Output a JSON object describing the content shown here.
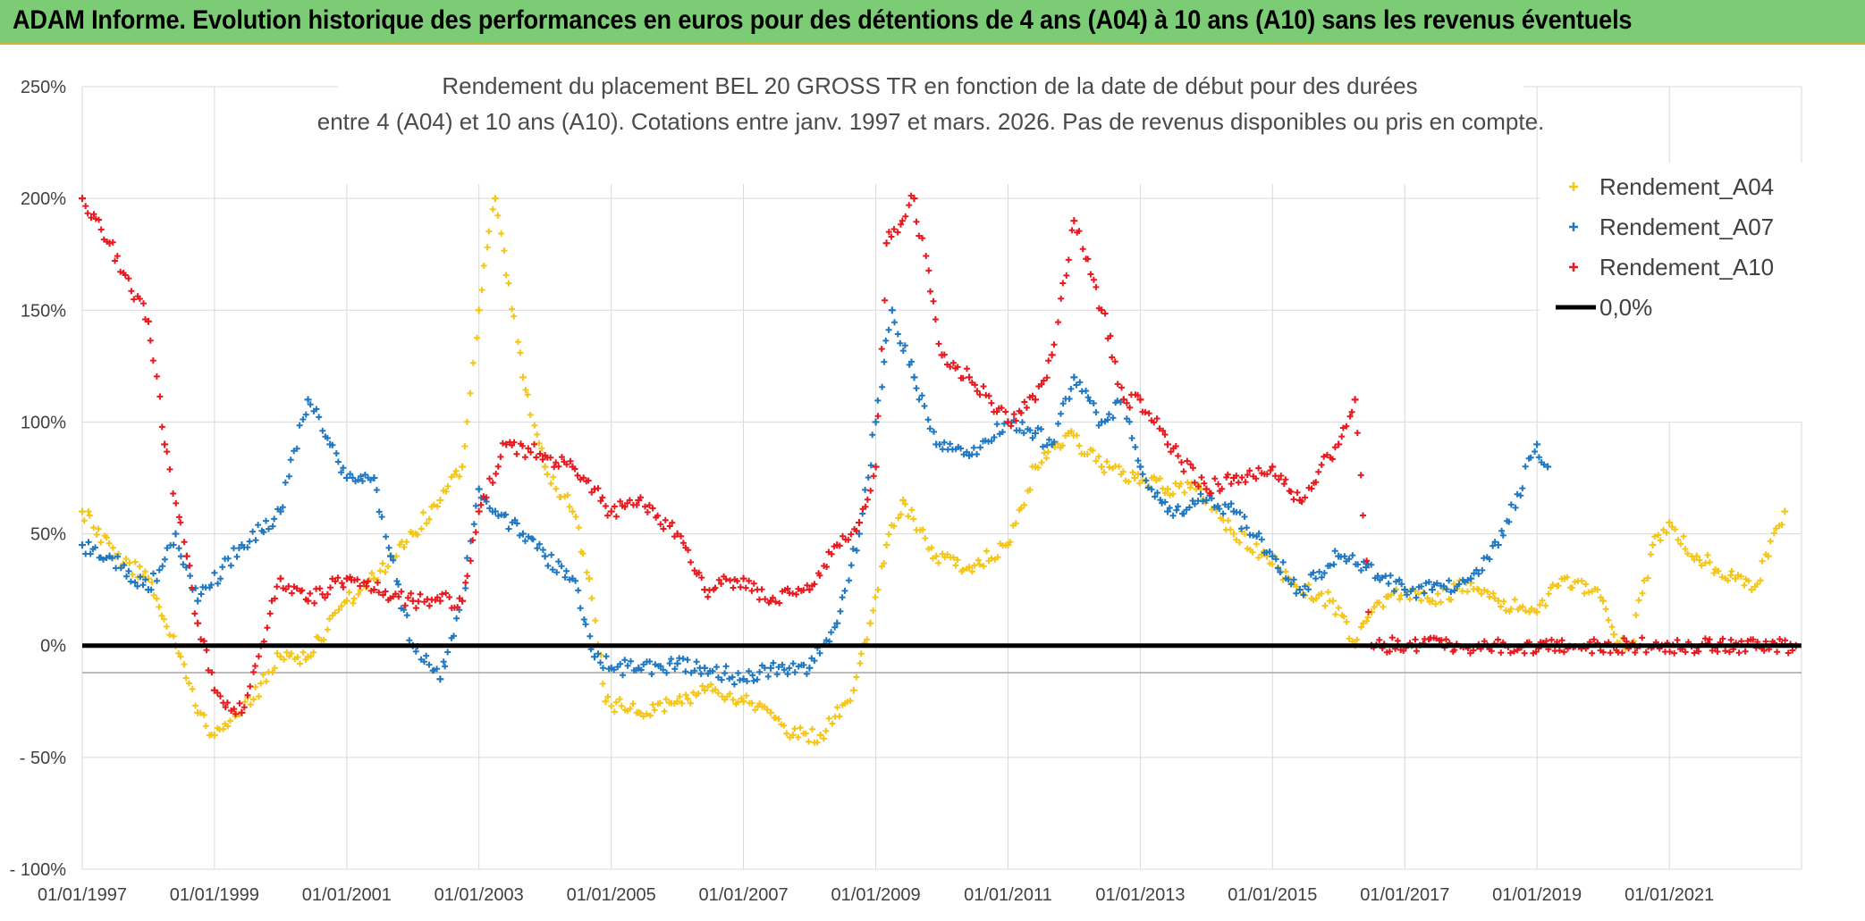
{
  "banner": "ADAM Informe. Evolution historique des performances en euros pour des détentions de 4 ans (A04) à 10 ans (A10) sans les revenus éventuels",
  "chart_data": {
    "type": "scatter",
    "title_line1": "Rendement du placement BEL 20 GROSS TR en fonction de la date de début pour des durées",
    "title_line2": "entre 4 (A04) et 10 ans (A10). Cotations entre janv. 1997 et mars. 2026. Pas de revenus disponibles ou pris en compte.",
    "xlabel": "",
    "ylabel": "",
    "x_range": [
      "1997-01-01",
      "2023-01-01"
    ],
    "ylim": [
      -100,
      250
    ],
    "y_ticks": [
      -100,
      -50,
      0,
      50,
      100,
      150,
      200,
      250
    ],
    "y_tick_labels": [
      "- 100%",
      "- 50%",
      "0%",
      "50%",
      "100%",
      "150%",
      "200%",
      "250%"
    ],
    "x_ticks": [
      "1997-01-01",
      "1999-01-01",
      "2001-01-01",
      "2003-01-01",
      "2005-01-01",
      "2007-01-01",
      "2009-01-01",
      "2011-01-01",
      "2013-01-01",
      "2015-01-01",
      "2017-01-01",
      "2019-01-01",
      "2021-01-01"
    ],
    "x_tick_labels": [
      "01/01/1997",
      "01/01/1999",
      "01/01/2001",
      "01/01/2003",
      "01/01/2005",
      "01/01/2007",
      "01/01/2009",
      "01/01/2011",
      "01/01/2013",
      "01/01/2015",
      "01/01/2017",
      "01/01/2019",
      "01/01/2021"
    ],
    "grid": true,
    "legend_position": "top-right",
    "marker": "+",
    "series": [
      {
        "name": "Rendement_A04",
        "color": "#f5c518",
        "x": [
          "1997-01",
          "1997-07",
          "1998-01",
          "1998-06",
          "1998-10",
          "1999-01",
          "1999-06",
          "2000-01",
          "2000-06",
          "2001-01",
          "2001-06",
          "2002-01",
          "2002-06",
          "2002-10",
          "2003-01",
          "2003-04",
          "2003-09",
          "2004-01",
          "2004-06",
          "2004-09",
          "2004-12",
          "2005-06",
          "2006-01",
          "2006-06",
          "2007-01",
          "2007-06",
          "2007-10",
          "2008-03",
          "2008-09",
          "2008-12",
          "2009-03",
          "2009-06",
          "2009-12",
          "2010-06",
          "2011-01",
          "2011-06",
          "2011-12",
          "2012-06",
          "2012-12",
          "2013-06",
          "2013-12",
          "2014-06",
          "2014-12",
          "2015-06",
          "2015-12",
          "2016-04",
          "2016-07",
          "2016-10",
          "2017-01",
          "2017-06",
          "2018-01",
          "2018-06",
          "2019-01",
          "2019-06",
          "2020-01",
          "2020-03",
          "2020-06",
          "2020-10",
          "2021-01",
          "2021-06",
          "2022-01",
          "2022-04",
          "2022-07",
          "2022-10"
        ],
        "y": [
          60,
          40,
          30,
          0,
          -30,
          -40,
          -30,
          -5,
          -5,
          20,
          30,
          50,
          65,
          80,
          150,
          200,
          120,
          80,
          60,
          30,
          -25,
          -30,
          -25,
          -20,
          -25,
          -30,
          -40,
          -40,
          -20,
          10,
          45,
          65,
          40,
          35,
          45,
          80,
          95,
          80,
          75,
          70,
          70,
          50,
          40,
          25,
          20,
          0,
          15,
          22,
          25,
          20,
          28,
          20,
          15,
          30,
          20,
          5,
          0,
          45,
          55,
          40,
          30,
          25,
          40,
          60
        ]
      },
      {
        "name": "Rendement_A07",
        "color": "#1f78c1",
        "x": [
          "1997-01",
          "1997-06",
          "1998-01",
          "1998-06",
          "1998-10",
          "1999-06",
          "2000-01",
          "2000-06",
          "2000-10",
          "2001-01",
          "2001-06",
          "2001-09",
          "2002-01",
          "2002-06",
          "2002-10",
          "2003-01",
          "2003-04",
          "2003-09",
          "2004-01",
          "2004-06",
          "2004-10",
          "2005-01",
          "2005-06",
          "2006-01",
          "2006-06",
          "2007-01",
          "2007-06",
          "2008-01",
          "2008-06",
          "2008-10",
          "2009-01",
          "2009-04",
          "2009-08",
          "2009-12",
          "2010-06",
          "2011-01",
          "2011-06",
          "2011-09",
          "2012-01",
          "2012-06",
          "2012-10",
          "2013-01",
          "2013-06",
          "2014-01",
          "2014-06",
          "2015-01",
          "2015-06",
          "2016-01",
          "2016-06",
          "2017-01",
          "2017-06",
          "2018-01",
          "2018-06",
          "2019-01",
          "2019-03"
        ],
        "y": [
          45,
          40,
          25,
          50,
          20,
          45,
          60,
          110,
          90,
          75,
          75,
          40,
          0,
          -15,
          20,
          70,
          60,
          50,
          40,
          30,
          -5,
          -10,
          -10,
          -8,
          -10,
          -15,
          -10,
          -10,
          10,
          50,
          100,
          150,
          120,
          90,
          85,
          100,
          95,
          90,
          120,
          100,
          110,
          80,
          60,
          65,
          60,
          40,
          25,
          40,
          35,
          25,
          25,
          30,
          45,
          90,
          80
        ]
      },
      {
        "name": "Rendement_A10",
        "color": "#e8191f",
        "x": [
          "1997-01",
          "1997-06",
          "1998-01",
          "1998-04",
          "1998-08",
          "1998-10",
          "1999-01",
          "1999-06",
          "2000-01",
          "2000-06",
          "2001-01",
          "2001-06",
          "2002-01",
          "2002-06",
          "2002-10",
          "2003-01",
          "2003-06",
          "2004-01",
          "2004-06",
          "2004-10",
          "2005-01",
          "2005-06",
          "2006-01",
          "2006-06",
          "2007-01",
          "2007-06",
          "2008-01",
          "2008-06",
          "2008-10",
          "2009-01",
          "2009-03",
          "2009-08",
          "2010-01",
          "2010-06",
          "2011-01",
          "2011-06",
          "2011-09",
          "2012-01",
          "2012-06",
          "2012-10",
          "2013-01",
          "2013-06",
          "2014-01",
          "2014-06",
          "2015-01",
          "2015-06",
          "2016-01",
          "2016-04",
          "2016-07",
          "2022-12"
        ],
        "y": [
          200,
          180,
          145,
          90,
          40,
          10,
          -20,
          -30,
          30,
          20,
          30,
          25,
          20,
          20,
          20,
          60,
          90,
          85,
          80,
          70,
          60,
          65,
          50,
          25,
          30,
          20,
          25,
          45,
          55,
          80,
          180,
          200,
          130,
          120,
          100,
          110,
          130,
          190,
          150,
          110,
          110,
          90,
          70,
          75,
          80,
          65,
          90,
          110,
          0,
          0
        ]
      },
      {
        "name": "0,0%",
        "color": "#000000",
        "line": true,
        "x": [
          "1997-01-01",
          "2022-12-31"
        ],
        "y": [
          0,
          0
        ]
      }
    ]
  }
}
